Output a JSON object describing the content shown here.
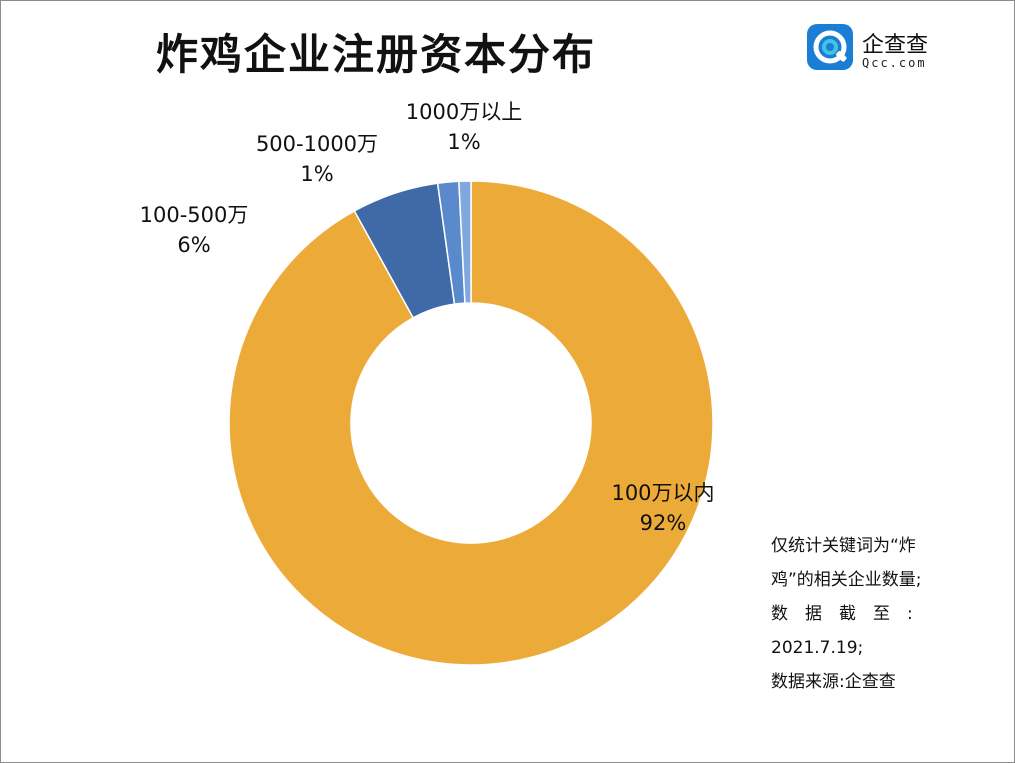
{
  "title": "炸鸡企业注册资本分布",
  "logo": {
    "text": "企查查",
    "sub": "Qcc.com",
    "colors": [
      "#1a7fd4",
      "#3ec5e0"
    ]
  },
  "note_lines": [
    "仅统计关键词为“炸",
    "鸡”的相关企业数量;",
    "数据截至:",
    "2021.7.19;",
    "数据来源:企查查"
  ],
  "chart_data": {
    "type": "pie",
    "style": "donut",
    "title": "炸鸡企业注册资本分布",
    "slices": [
      {
        "label": "100万以内",
        "percent_label": "92%",
        "value": 92.0,
        "color": "#ecaa38"
      },
      {
        "label": "100-500万",
        "percent_label": "6%",
        "value": 5.8,
        "color": "#4069a8"
      },
      {
        "label": "500-1000万",
        "percent_label": "1%",
        "value": 1.4,
        "color": "#5a89cc"
      },
      {
        "label": "1000万以上",
        "percent_label": "1%",
        "value": 0.8,
        "color": "#80a8df"
      }
    ],
    "legend": "none"
  }
}
